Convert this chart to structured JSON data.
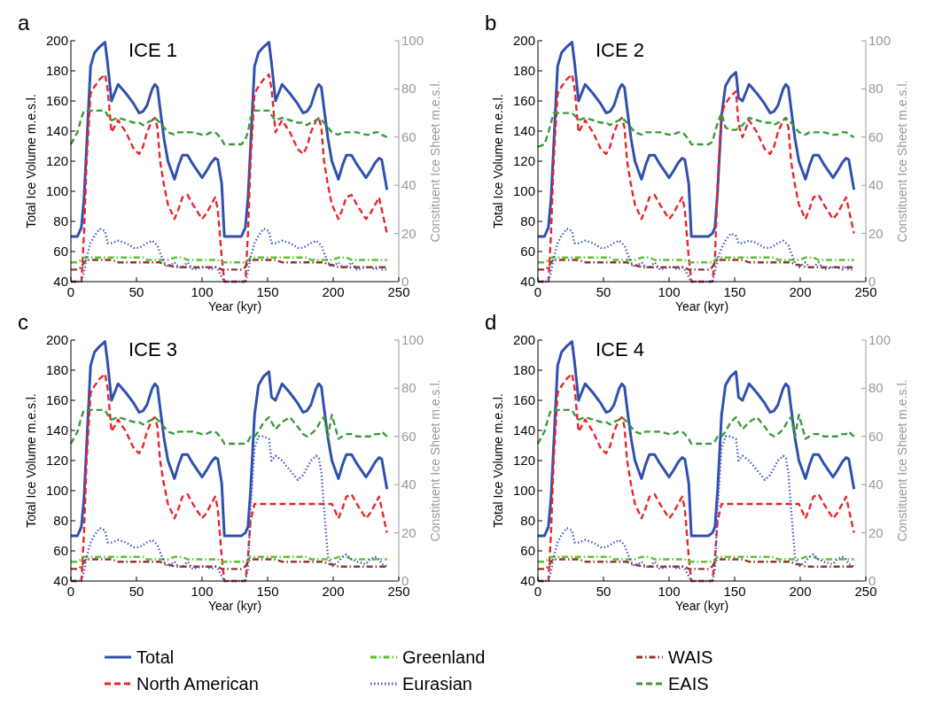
{
  "chart_data": [
    {
      "type": "line",
      "title": "ICE 1",
      "annotations": [
        "a"
      ],
      "xlabel": "Year (kyr)",
      "ylabel": "Total Ice Volume m.e.s.l.",
      "y2label": "Constituent Ice Sheet m.e.s.l.",
      "xlim": [
        0,
        250
      ],
      "xticks": [
        0,
        50,
        100,
        150,
        200,
        250
      ],
      "ylim": [
        40,
        200
      ],
      "yticks": [
        40,
        60,
        80,
        100,
        120,
        140,
        160,
        180,
        200
      ],
      "y2lim": [
        0,
        100
      ],
      "y2ticks": [
        0,
        20,
        40,
        60,
        80,
        100
      ],
      "legend": "bottom",
      "x": [
        0,
        5,
        8,
        10,
        12,
        15,
        18,
        22,
        26,
        28,
        31,
        36,
        42,
        48,
        52,
        55,
        58,
        62,
        64,
        66,
        68,
        71,
        74,
        79,
        82,
        85,
        89,
        93,
        100,
        103,
        107,
        110,
        112,
        115,
        117,
        125,
        130,
        133,
        135,
        137,
        140,
        143,
        147,
        151,
        153,
        156,
        161,
        167,
        173,
        177,
        180,
        183,
        187,
        189,
        191,
        193,
        196,
        199,
        204,
        207,
        210,
        214,
        218,
        225,
        228,
        232,
        235,
        237,
        241
      ],
      "series": [
        {
          "name": "Total",
          "color": "#3050b0",
          "line_style": "solid",
          "values": [
            70,
            70,
            76,
            95,
            130,
            183,
            192,
            196,
            199,
            185,
            160,
            171,
            165,
            158,
            152,
            153,
            157,
            168,
            171,
            169,
            155,
            135,
            120,
            108,
            117,
            124,
            124,
            118,
            109,
            113,
            119,
            122,
            121,
            105,
            70,
            70,
            70,
            76,
            95,
            130,
            183,
            192,
            196,
            199,
            185,
            160,
            171,
            165,
            158,
            152,
            153,
            157,
            168,
            171,
            169,
            155,
            135,
            120,
            108,
            117,
            124,
            124,
            118,
            109,
            113,
            119,
            122,
            121,
            101
          ]
        },
        {
          "name": "North American",
          "color": "#e8262a",
          "line_style": "dashed",
          "axis": "y2",
          "values": [
            0,
            0,
            0,
            20,
            50,
            78,
            81,
            84,
            86,
            80,
            62,
            67,
            62,
            55,
            53,
            56,
            62,
            67,
            68,
            64,
            50,
            40,
            32,
            26,
            30,
            35,
            36,
            32,
            26,
            28,
            32,
            35,
            30,
            10,
            0,
            0,
            0,
            0,
            20,
            50,
            78,
            81,
            84,
            86,
            80,
            62,
            67,
            62,
            55,
            53,
            56,
            62,
            67,
            68,
            64,
            50,
            40,
            32,
            26,
            30,
            35,
            36,
            32,
            26,
            28,
            32,
            35,
            30,
            20
          ]
        },
        {
          "name": "Greenland",
          "color": "#5cc132",
          "line_style": "dashdot",
          "axis": "y2",
          "values": [
            8,
            8,
            9,
            10,
            10,
            10,
            10,
            10,
            10,
            10,
            10,
            10,
            10,
            10,
            10,
            10,
            9,
            9,
            9,
            9,
            9,
            9,
            9,
            10,
            10,
            10,
            9,
            9,
            9,
            9,
            9,
            9,
            9,
            8,
            8,
            8,
            8,
            8,
            9,
            10,
            10,
            10,
            10,
            10,
            10,
            10,
            10,
            10,
            10,
            10,
            10,
            9,
            9,
            9,
            9,
            9,
            9,
            9,
            10,
            10,
            10,
            9,
            9,
            9,
            9,
            9,
            9,
            9,
            9
          ]
        },
        {
          "name": "Eurasian",
          "color": "#4a5cc8",
          "line_style": "dotted",
          "axis": "y2",
          "values": [
            0,
            0,
            0,
            4,
            10,
            16,
            19,
            22,
            21,
            16,
            16,
            17,
            16,
            14,
            14,
            15,
            16,
            17,
            16,
            15,
            12,
            8,
            6,
            8,
            6,
            6,
            8,
            5,
            6,
            6,
            5,
            6,
            5,
            2,
            0,
            0,
            0,
            0,
            4,
            10,
            16,
            19,
            22,
            21,
            16,
            16,
            17,
            16,
            14,
            14,
            15,
            16,
            17,
            16,
            15,
            12,
            8,
            6,
            8,
            6,
            6,
            8,
            5,
            6,
            6,
            5,
            6,
            5,
            5
          ]
        },
        {
          "name": "WAIS",
          "color": "#8b3a32",
          "line_style": "dashdot",
          "axis": "y2",
          "values": [
            5,
            5,
            6,
            8,
            9,
            9,
            9,
            9,
            9,
            9,
            9,
            8,
            8,
            8,
            8,
            8,
            8,
            8,
            8,
            8,
            8,
            7,
            7,
            6,
            6,
            6,
            6,
            6,
            6,
            6,
            6,
            6,
            6,
            5,
            5,
            5,
            5,
            6,
            8,
            9,
            9,
            9,
            9,
            9,
            9,
            9,
            8,
            8,
            8,
            8,
            8,
            8,
            8,
            8,
            8,
            8,
            7,
            7,
            6,
            6,
            6,
            6,
            6,
            6,
            6,
            6,
            6,
            6,
            6
          ]
        },
        {
          "name": "EAIS",
          "color": "#3a9a3a",
          "line_style": "dashed",
          "axis": "y2",
          "values": [
            57,
            62,
            68,
            71,
            71,
            71,
            71,
            71,
            71,
            69,
            67,
            68,
            67,
            66,
            66,
            65,
            66,
            67,
            68,
            67,
            66,
            64,
            62,
            61,
            62,
            62,
            62,
            62,
            61,
            61,
            62,
            62,
            61,
            59,
            57,
            57,
            57,
            59,
            62,
            68,
            71,
            71,
            71,
            71,
            69,
            67,
            68,
            67,
            66,
            66,
            65,
            66,
            67,
            68,
            67,
            66,
            64,
            62,
            61,
            62,
            62,
            62,
            62,
            61,
            61,
            62,
            62,
            61,
            60
          ]
        }
      ]
    },
    {
      "type": "line",
      "title": "ICE 2",
      "annotations": [
        "b"
      ],
      "xlabel": "Year (kyr)",
      "ylabel": "Total Ice Volume m.e.s.l.",
      "y2label": "Constituent Ice Sheet m.e.s.l.",
      "xlim": [
        0,
        250
      ],
      "xticks": [
        0,
        50,
        100,
        150,
        200,
        250
      ],
      "ylim": [
        40,
        200
      ],
      "yticks": [
        40,
        60,
        80,
        100,
        120,
        140,
        160,
        180,
        200
      ],
      "y2lim": [
        0,
        100
      ],
      "y2ticks": [
        0,
        20,
        40,
        60,
        80,
        100
      ],
      "x": [
        0,
        5,
        8,
        10,
        12,
        15,
        18,
        22,
        26,
        28,
        31,
        36,
        42,
        48,
        52,
        55,
        58,
        62,
        64,
        66,
        68,
        71,
        74,
        79,
        82,
        85,
        89,
        93,
        100,
        103,
        107,
        110,
        112,
        115,
        117,
        125,
        130,
        133,
        135,
        137,
        140,
        143,
        147,
        151,
        153,
        156,
        161,
        167,
        173,
        177,
        180,
        183,
        187,
        189,
        191,
        193,
        196,
        199,
        204,
        207,
        210,
        214,
        218,
        225,
        228,
        232,
        235,
        237,
        241
      ],
      "series": [
        {
          "color": "#3050b0",
          "line_style": "solid",
          "values": [
            70,
            70,
            76,
            95,
            130,
            183,
            192,
            196,
            199,
            185,
            160,
            171,
            165,
            158,
            152,
            153,
            157,
            168,
            171,
            169,
            155,
            135,
            120,
            108,
            117,
            124,
            124,
            118,
            109,
            113,
            119,
            122,
            121,
            105,
            70,
            70,
            70,
            72,
            76,
            100,
            150,
            170,
            176,
            179,
            162,
            160,
            171,
            165,
            158,
            152,
            153,
            157,
            168,
            171,
            169,
            155,
            135,
            120,
            108,
            117,
            124,
            124,
            118,
            109,
            113,
            119,
            122,
            121,
            101
          ]
        },
        {
          "color": "#e8262a",
          "line_style": "dashed",
          "axis": "y2",
          "values": [
            0,
            0,
            0,
            20,
            50,
            78,
            81,
            84,
            86,
            80,
            62,
            67,
            62,
            55,
            53,
            56,
            62,
            67,
            68,
            64,
            50,
            40,
            32,
            26,
            30,
            35,
            36,
            32,
            26,
            28,
            32,
            35,
            30,
            10,
            0,
            0,
            0,
            0,
            10,
            40,
            70,
            74,
            77,
            79,
            65,
            60,
            67,
            62,
            55,
            53,
            56,
            62,
            67,
            68,
            64,
            50,
            40,
            32,
            26,
            30,
            35,
            36,
            32,
            26,
            28,
            32,
            35,
            30,
            20
          ]
        },
        {
          "color": "#5cc132",
          "line_style": "dashdot",
          "axis": "y2",
          "values": [
            8,
            8,
            9,
            10,
            10,
            10,
            10,
            10,
            10,
            10,
            10,
            10,
            10,
            10,
            10,
            10,
            9,
            9,
            9,
            9,
            9,
            9,
            9,
            10,
            10,
            10,
            9,
            9,
            9,
            9,
            9,
            9,
            9,
            8,
            8,
            8,
            8,
            8,
            9,
            10,
            10,
            10,
            10,
            10,
            10,
            10,
            10,
            10,
            10,
            10,
            10,
            9,
            9,
            9,
            9,
            9,
            9,
            9,
            10,
            10,
            10,
            9,
            9,
            9,
            9,
            9,
            9,
            9,
            9
          ]
        },
        {
          "color": "#4a5cc8",
          "line_style": "dotted",
          "axis": "y2",
          "values": [
            0,
            0,
            0,
            4,
            10,
            16,
            19,
            22,
            21,
            16,
            16,
            17,
            16,
            14,
            14,
            15,
            16,
            17,
            16,
            15,
            12,
            8,
            6,
            8,
            6,
            6,
            8,
            5,
            6,
            6,
            5,
            6,
            5,
            2,
            0,
            0,
            0,
            0,
            4,
            9,
            14,
            17,
            20,
            19,
            16,
            16,
            17,
            16,
            14,
            14,
            15,
            16,
            17,
            16,
            15,
            12,
            8,
            6,
            8,
            6,
            6,
            8,
            5,
            6,
            6,
            5,
            6,
            5,
            5
          ]
        },
        {
          "color": "#8b3a32",
          "line_style": "dashdot",
          "axis": "y2",
          "values": [
            5,
            5,
            6,
            8,
            9,
            9,
            9,
            9,
            9,
            9,
            9,
            8,
            8,
            8,
            8,
            8,
            8,
            8,
            8,
            8,
            8,
            7,
            7,
            6,
            6,
            6,
            6,
            6,
            6,
            6,
            6,
            6,
            6,
            5,
            5,
            5,
            5,
            6,
            8,
            9,
            9,
            9,
            9,
            9,
            9,
            9,
            8,
            8,
            8,
            8,
            8,
            8,
            8,
            8,
            8,
            8,
            7,
            7,
            6,
            6,
            6,
            6,
            6,
            6,
            6,
            6,
            6,
            6,
            6
          ]
        },
        {
          "color": "#3a9a3a",
          "line_style": "dashed",
          "axis": "y2",
          "values": [
            56,
            57,
            62,
            66,
            70,
            70,
            70,
            70,
            70,
            69,
            67,
            68,
            67,
            66,
            66,
            65,
            66,
            67,
            68,
            67,
            66,
            64,
            62,
            61,
            62,
            62,
            62,
            62,
            61,
            61,
            62,
            62,
            61,
            59,
            57,
            57,
            57,
            58,
            62,
            66,
            70,
            64,
            63,
            63,
            64,
            65,
            68,
            67,
            66,
            66,
            65,
            66,
            67,
            68,
            67,
            66,
            64,
            62,
            61,
            62,
            62,
            62,
            62,
            61,
            61,
            62,
            62,
            61,
            60
          ]
        }
      ]
    },
    {
      "type": "line",
      "title": "ICE 3",
      "annotations": [
        "c"
      ],
      "xlabel": "Year (kyr)",
      "ylabel": "Total Ice Volume m.e.s.l.",
      "y2label": "Constituent Ice Sheet m.e.s.l.",
      "xlim": [
        0,
        250
      ],
      "xticks": [
        0,
        50,
        100,
        150,
        200,
        250
      ],
      "ylim": [
        40,
        200
      ],
      "yticks": [
        40,
        60,
        80,
        100,
        120,
        140,
        160,
        180,
        200
      ],
      "y2lim": [
        0,
        100
      ],
      "y2ticks": [
        0,
        20,
        40,
        60,
        80,
        100
      ],
      "x": [
        0,
        5,
        8,
        10,
        12,
        15,
        18,
        22,
        26,
        28,
        31,
        36,
        42,
        48,
        52,
        55,
        58,
        62,
        64,
        66,
        68,
        71,
        74,
        79,
        82,
        85,
        89,
        93,
        100,
        103,
        107,
        110,
        112,
        115,
        117,
        125,
        130,
        133,
        135,
        137,
        140,
        143,
        147,
        151,
        153,
        156,
        161,
        167,
        173,
        177,
        180,
        183,
        187,
        189,
        191,
        193,
        196,
        199,
        204,
        207,
        210,
        214,
        218,
        225,
        228,
        232,
        235,
        237,
        241
      ],
      "series": [
        {
          "color": "#3050b0",
          "line_style": "solid",
          "values": [
            70,
            70,
            76,
            95,
            130,
            183,
            192,
            196,
            199,
            185,
            160,
            171,
            165,
            158,
            152,
            153,
            157,
            168,
            171,
            169,
            155,
            135,
            120,
            108,
            117,
            124,
            124,
            118,
            109,
            113,
            119,
            122,
            121,
            105,
            70,
            70,
            70,
            72,
            76,
            100,
            150,
            170,
            176,
            179,
            162,
            160,
            171,
            165,
            158,
            152,
            153,
            157,
            168,
            171,
            169,
            155,
            135,
            120,
            108,
            117,
            124,
            124,
            118,
            109,
            113,
            119,
            122,
            121,
            101
          ]
        },
        {
          "color": "#e8262a",
          "line_style": "dashed",
          "axis": "y2",
          "values": [
            0,
            0,
            0,
            20,
            50,
            78,
            81,
            84,
            86,
            80,
            62,
            67,
            62,
            55,
            53,
            56,
            62,
            67,
            68,
            64,
            50,
            40,
            32,
            26,
            30,
            35,
            36,
            32,
            26,
            28,
            32,
            35,
            30,
            10,
            0,
            0,
            0,
            0,
            10,
            25,
            32,
            32,
            32,
            32,
            32,
            32,
            32,
            32,
            32,
            32,
            32,
            32,
            32,
            32,
            32,
            32,
            32,
            32,
            26,
            30,
            35,
            36,
            32,
            26,
            28,
            32,
            35,
            30,
            20
          ]
        },
        {
          "color": "#5cc132",
          "line_style": "dashdot",
          "axis": "y2",
          "values": [
            8,
            8,
            9,
            10,
            10,
            10,
            10,
            10,
            10,
            10,
            10,
            10,
            10,
            10,
            10,
            10,
            9,
            9,
            9,
            9,
            9,
            9,
            9,
            10,
            10,
            10,
            9,
            9,
            9,
            9,
            9,
            9,
            9,
            8,
            8,
            8,
            8,
            8,
            9,
            10,
            10,
            10,
            10,
            10,
            10,
            10,
            10,
            10,
            10,
            10,
            10,
            9,
            9,
            9,
            9,
            9,
            9,
            9,
            10,
            10,
            10,
            9,
            9,
            9,
            9,
            9,
            9,
            9,
            9
          ]
        },
        {
          "color": "#4a5cc8",
          "line_style": "dotted",
          "axis": "y2",
          "values": [
            0,
            0,
            0,
            4,
            10,
            16,
            19,
            22,
            21,
            16,
            16,
            17,
            16,
            14,
            14,
            15,
            16,
            17,
            16,
            15,
            12,
            8,
            6,
            8,
            6,
            6,
            8,
            5,
            6,
            6,
            5,
            6,
            5,
            2,
            0,
            0,
            0,
            0,
            5,
            30,
            55,
            60,
            60,
            59,
            50,
            52,
            50,
            46,
            42,
            44,
            47,
            50,
            52,
            51,
            45,
            30,
            10,
            6,
            8,
            10,
            11,
            9,
            8,
            7,
            9,
            10,
            9,
            7,
            6
          ]
        },
        {
          "color": "#8b3a32",
          "line_style": "dashdot",
          "axis": "y2",
          "values": [
            5,
            5,
            6,
            8,
            9,
            9,
            9,
            9,
            9,
            9,
            9,
            8,
            8,
            8,
            8,
            8,
            8,
            8,
            8,
            8,
            8,
            7,
            7,
            6,
            6,
            6,
            6,
            6,
            6,
            6,
            6,
            6,
            6,
            5,
            5,
            5,
            5,
            6,
            8,
            9,
            9,
            9,
            9,
            9,
            9,
            9,
            8,
            8,
            8,
            8,
            8,
            8,
            8,
            8,
            8,
            8,
            7,
            7,
            6,
            6,
            6,
            6,
            6,
            6,
            6,
            6,
            6,
            6,
            6
          ]
        },
        {
          "color": "#3a9a3a",
          "line_style": "dashed",
          "axis": "y2",
          "values": [
            57,
            62,
            68,
            71,
            71,
            71,
            71,
            71,
            71,
            69,
            67,
            68,
            67,
            66,
            66,
            65,
            66,
            67,
            68,
            67,
            66,
            64,
            62,
            61,
            62,
            62,
            62,
            62,
            61,
            61,
            62,
            62,
            61,
            59,
            57,
            57,
            57,
            57,
            58,
            60,
            60,
            62,
            66,
            68,
            66,
            63,
            66,
            68,
            64,
            61,
            60,
            61,
            63,
            65,
            67,
            68,
            60,
            69,
            59,
            60,
            61,
            61,
            60,
            60,
            60,
            61,
            61,
            62,
            60
          ]
        }
      ]
    },
    {
      "type": "line",
      "title": "ICE 4",
      "annotations": [
        "d"
      ],
      "xlabel": "Year (kyr)",
      "ylabel": "Total Ice Volume m.e.s.l.",
      "y2label": "Constituent Ice Sheet m.e.s.l.",
      "xlim": [
        0,
        250
      ],
      "xticks": [
        0,
        50,
        100,
        150,
        200,
        250
      ],
      "ylim": [
        40,
        200
      ],
      "yticks": [
        40,
        60,
        80,
        100,
        120,
        140,
        160,
        180,
        200
      ],
      "y2lim": [
        0,
        100
      ],
      "y2ticks": [
        0,
        20,
        40,
        60,
        80,
        100
      ],
      "x": [
        0,
        5,
        8,
        10,
        12,
        15,
        18,
        22,
        26,
        28,
        31,
        36,
        42,
        48,
        52,
        55,
        58,
        62,
        64,
        66,
        68,
        71,
        74,
        79,
        82,
        85,
        89,
        93,
        100,
        103,
        107,
        110,
        112,
        115,
        117,
        125,
        130,
        133,
        135,
        137,
        140,
        143,
        147,
        151,
        153,
        156,
        161,
        167,
        173,
        177,
        180,
        183,
        187,
        189,
        191,
        193,
        196,
        199,
        204,
        207,
        210,
        214,
        218,
        225,
        228,
        232,
        235,
        237,
        241
      ],
      "series": [
        {
          "color": "#3050b0",
          "line_style": "solid",
          "values": [
            70,
            70,
            76,
            95,
            130,
            183,
            192,
            196,
            199,
            185,
            160,
            171,
            165,
            158,
            152,
            153,
            157,
            168,
            171,
            169,
            155,
            135,
            120,
            108,
            117,
            124,
            124,
            118,
            109,
            113,
            119,
            122,
            121,
            105,
            70,
            70,
            70,
            72,
            76,
            100,
            150,
            170,
            176,
            179,
            162,
            160,
            171,
            165,
            158,
            152,
            153,
            157,
            168,
            171,
            169,
            155,
            135,
            120,
            108,
            117,
            124,
            124,
            118,
            109,
            113,
            119,
            122,
            121,
            101
          ]
        },
        {
          "color": "#e8262a",
          "line_style": "dashed",
          "axis": "y2",
          "values": [
            0,
            0,
            0,
            20,
            50,
            78,
            81,
            84,
            86,
            80,
            62,
            67,
            62,
            55,
            53,
            56,
            62,
            67,
            68,
            64,
            50,
            40,
            32,
            26,
            30,
            35,
            36,
            32,
            26,
            28,
            32,
            35,
            30,
            10,
            0,
            0,
            0,
            0,
            10,
            25,
            32,
            32,
            32,
            32,
            32,
            32,
            32,
            32,
            32,
            32,
            32,
            32,
            32,
            32,
            32,
            32,
            32,
            32,
            26,
            30,
            35,
            36,
            32,
            26,
            28,
            32,
            35,
            30,
            20
          ]
        },
        {
          "color": "#5cc132",
          "line_style": "dashdot",
          "axis": "y2",
          "values": [
            8,
            8,
            9,
            10,
            10,
            10,
            10,
            10,
            10,
            10,
            10,
            10,
            10,
            10,
            10,
            10,
            9,
            9,
            9,
            9,
            9,
            9,
            9,
            10,
            10,
            10,
            9,
            9,
            9,
            9,
            9,
            9,
            9,
            8,
            8,
            8,
            8,
            8,
            9,
            10,
            10,
            10,
            10,
            10,
            10,
            10,
            10,
            10,
            10,
            10,
            10,
            9,
            9,
            9,
            9,
            9,
            9,
            9,
            10,
            10,
            10,
            9,
            9,
            9,
            9,
            9,
            9,
            9,
            9
          ]
        },
        {
          "color": "#4a5cc8",
          "line_style": "dotted",
          "axis": "y2",
          "values": [
            0,
            0,
            0,
            4,
            10,
            16,
            19,
            22,
            21,
            16,
            16,
            17,
            16,
            14,
            14,
            15,
            16,
            17,
            16,
            15,
            12,
            8,
            6,
            8,
            6,
            6,
            8,
            5,
            6,
            6,
            5,
            6,
            5,
            2,
            0,
            0,
            0,
            0,
            5,
            30,
            55,
            60,
            60,
            59,
            50,
            52,
            50,
            46,
            42,
            44,
            47,
            50,
            52,
            51,
            45,
            30,
            10,
            6,
            8,
            10,
            11,
            9,
            8,
            7,
            9,
            10,
            9,
            7,
            6
          ]
        },
        {
          "color": "#8b3a32",
          "line_style": "dashdot",
          "axis": "y2",
          "values": [
            5,
            5,
            6,
            8,
            9,
            9,
            9,
            9,
            9,
            9,
            9,
            8,
            8,
            8,
            8,
            8,
            8,
            8,
            8,
            8,
            8,
            7,
            7,
            6,
            6,
            6,
            6,
            6,
            6,
            6,
            6,
            6,
            6,
            5,
            5,
            5,
            5,
            6,
            8,
            9,
            9,
            9,
            9,
            9,
            9,
            9,
            8,
            8,
            8,
            8,
            8,
            8,
            8,
            8,
            8,
            8,
            7,
            7,
            6,
            6,
            6,
            6,
            6,
            6,
            6,
            6,
            6,
            6,
            6
          ]
        },
        {
          "color": "#3a9a3a",
          "line_style": "dashed",
          "axis": "y2",
          "values": [
            57,
            62,
            68,
            71,
            71,
            71,
            71,
            71,
            71,
            69,
            67,
            68,
            67,
            66,
            66,
            65,
            66,
            67,
            68,
            67,
            66,
            64,
            62,
            61,
            62,
            62,
            62,
            62,
            61,
            61,
            62,
            62,
            61,
            59,
            57,
            57,
            57,
            57,
            58,
            60,
            60,
            62,
            66,
            68,
            66,
            63,
            66,
            68,
            64,
            61,
            60,
            61,
            63,
            65,
            67,
            68,
            60,
            69,
            59,
            60,
            61,
            61,
            60,
            60,
            60,
            61,
            61,
            62,
            60
          ]
        }
      ]
    }
  ]
}
